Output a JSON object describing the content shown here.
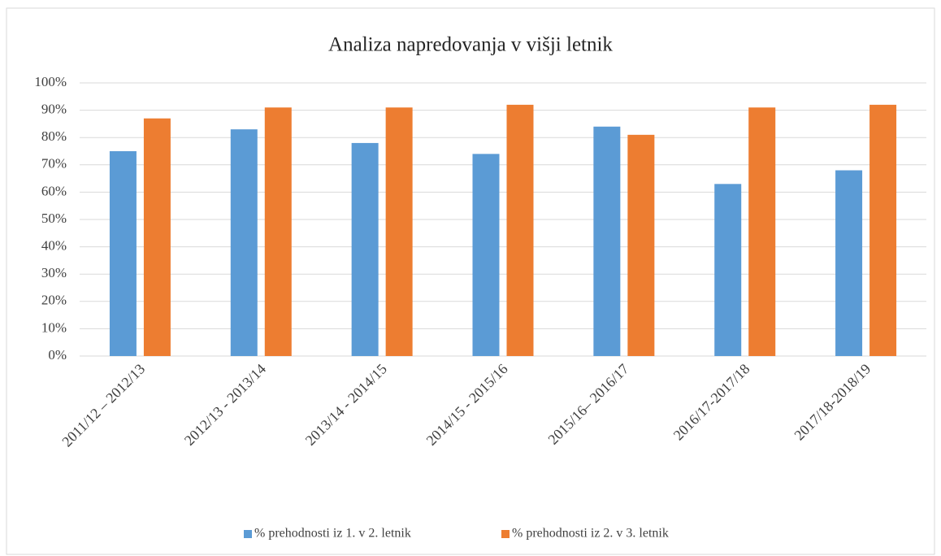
{
  "chart_data": {
    "type": "bar",
    "title": "Analiza napredovanja v višji letnik",
    "categories": [
      "2011/12 – 2012/13",
      "2012/13 - 2013/14",
      "2013/14 - 2014/15",
      "2014/15 - 2015/16",
      "2015/16– 2016/17",
      "2016/17-2017/18",
      "2017/18-2018/19"
    ],
    "series": [
      {
        "name": "% prehodnosti iz 1. v 2. letnik",
        "color": "#5b9bd5",
        "values": [
          75,
          83,
          78,
          74,
          84,
          63,
          68
        ]
      },
      {
        "name": "% prehodnosti iz 2. v 3. letnik",
        "color": "#ed7d31",
        "values": [
          87,
          91,
          91,
          92,
          81,
          91,
          92
        ]
      }
    ],
    "ylim": [
      0,
      100
    ],
    "yticks": [
      {
        "value": 0,
        "label": "0%"
      },
      {
        "value": 10,
        "label": "10%"
      },
      {
        "value": 20,
        "label": "20%"
      },
      {
        "value": 30,
        "label": "30%"
      },
      {
        "value": 40,
        "label": "40%"
      },
      {
        "value": 50,
        "label": "50%"
      },
      {
        "value": 60,
        "label": "60%"
      },
      {
        "value": 70,
        "label": "70%"
      },
      {
        "value": 80,
        "label": "80%"
      },
      {
        "value": 90,
        "label": "90%"
      },
      {
        "value": 100,
        "label": "100%"
      }
    ],
    "grid": true,
    "legend": "bottom"
  }
}
